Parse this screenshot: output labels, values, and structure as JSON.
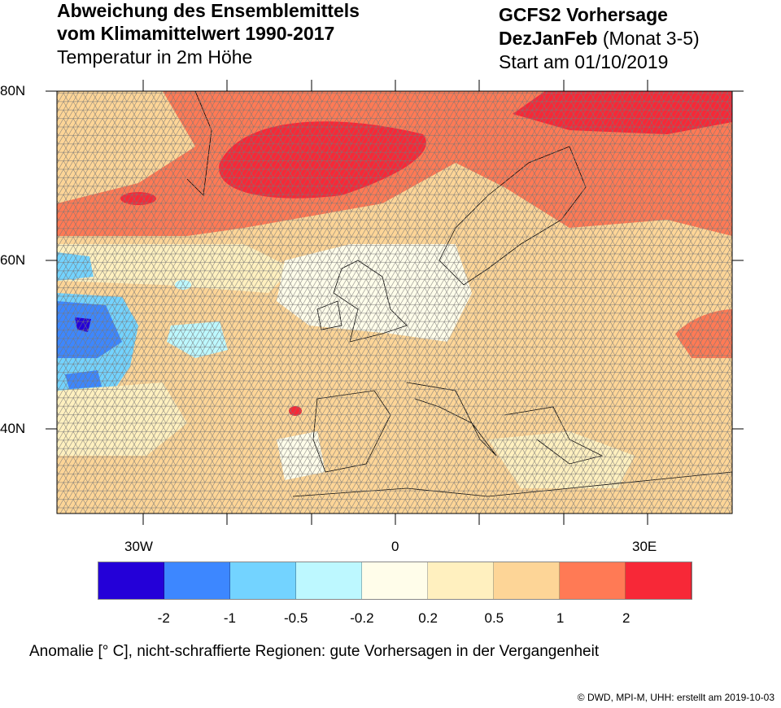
{
  "title": {
    "left_line1": "Abweichung des Ensemblemittels",
    "left_line2": "vom Klimamittelwert 1990-2017",
    "left_line3": "Temperatur in 2m Höhe",
    "right_line1": "GCFS2 Vorhersage",
    "right_line2_bold": "DezJanFeb",
    "right_line2_normal": "(Monat 3-5)",
    "right_line3": "Start am 01/10/2019"
  },
  "map": {
    "lat_labels": [
      "80N",
      "60N",
      "40N"
    ],
    "lon_labels": [
      "30W",
      "0",
      "30E"
    ]
  },
  "colorbar": {
    "colors": [
      "#2400d8",
      "#3d87ff",
      "#73d3ff",
      "#bdf8ff",
      "#fffdea",
      "#fff0bf",
      "#fdd597",
      "#ff7a55",
      "#f72837"
    ],
    "labels": [
      "-2",
      "-1",
      "-0.5",
      "-0.2",
      "0.2",
      "0.5",
      "1",
      "2"
    ]
  },
  "caption": "Anomalie [° C], nicht-schraffierte Regionen: gute Vorhersagen in der Vergangenheit",
  "footer": "©  DWD, MPI-M, UHH: erstellt am 2019-10-03"
}
